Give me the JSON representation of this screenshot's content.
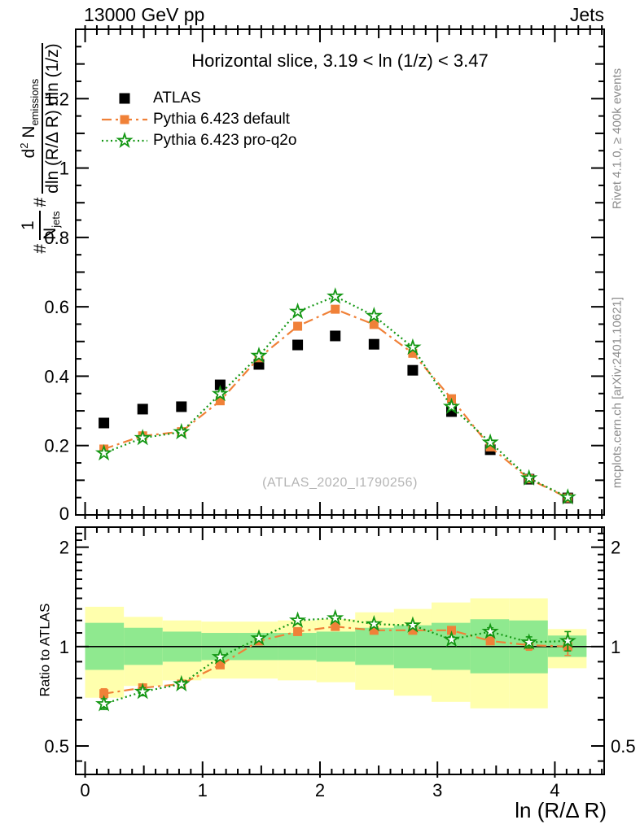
{
  "header": {
    "left": "13000 GeV pp",
    "right": "Jets"
  },
  "panel_title": "Horizontal slice, 3.19 < ln (1/z) < 3.47",
  "watermark": "(ATLAS_2020_I1790256)",
  "credits": {
    "top": "Rivet 4.1.0, ≥ 400k events",
    "bottom": "mcplots.cern.ch [arXiv:2401.10621]"
  },
  "axes": {
    "x_title": "ln (R/Δ R)",
    "ratio_title": "Ratio to ATLAS",
    "y_title": {
      "hash1": "#",
      "frac1_num": "1",
      "frac1_den_base": "N",
      "frac1_den_sub": "jets",
      "hash2": "#",
      "frac2_num_d": "d",
      "frac2_num_sup": "2",
      "frac2_num_N": " N",
      "frac2_num_sub": "emissions",
      "frac2_den": "dln (R/Δ R) dln (1/z)"
    }
  },
  "colors": {
    "atlas": "#000000",
    "pythia_default": "#f08138",
    "pythia_proq2o": "#129612",
    "band_yellow": "#ffffad",
    "band_green": "#8fe98f",
    "watermark": "#b4b4b4",
    "credits": "#8c8c8c",
    "frame": "#000000"
  },
  "chart_data": {
    "type": "line",
    "title": "Horizontal slice, 3.19 < ln (1/z) < 3.47",
    "xlabel": "ln (R/Δ R)",
    "ylabel": "(1/N_jets) d2N_emissions / dln(R/ΔR) dln(1/z)",
    "xlim": [
      -0.08,
      4.42
    ],
    "ylim": [
      0,
      1.4
    ],
    "x": [
      0.16,
      0.49,
      0.82,
      1.15,
      1.48,
      1.81,
      2.13,
      2.46,
      2.79,
      3.12,
      3.45,
      3.78,
      4.11
    ],
    "xticks": [
      0,
      1,
      2,
      3,
      4
    ],
    "xtick_labels": [
      "0",
      "1",
      "2",
      "3",
      "4"
    ],
    "ytick_labels": [
      "0",
      "0.2",
      "0.4",
      "0.6",
      "0.8",
      "1",
      "1.2"
    ],
    "series": [
      {
        "name": "ATLAS",
        "color": "#000000",
        "marker": "square-filled",
        "line": "none",
        "values": [
          0.265,
          0.305,
          0.312,
          0.375,
          0.434,
          0.49,
          0.516,
          0.492,
          0.417,
          0.298,
          0.188,
          0.103,
          0.049
        ]
      },
      {
        "name": "Pythia 6.423 default",
        "color": "#f08138",
        "marker": "square-filled",
        "line": "dash-dot",
        "values": [
          0.19,
          0.228,
          0.24,
          0.329,
          0.453,
          0.544,
          0.593,
          0.549,
          0.466,
          0.335,
          0.196,
          0.104,
          0.049
        ]
      },
      {
        "name": "Pythia 6.423 pro-q2o",
        "color": "#129612",
        "marker": "star-open",
        "line": "dotted",
        "values": [
          0.178,
          0.222,
          0.239,
          0.349,
          0.459,
          0.586,
          0.63,
          0.574,
          0.483,
          0.312,
          0.209,
          0.106,
          0.051
        ]
      }
    ],
    "ratio": {
      "scale": "log",
      "ylim": [
        0.41,
        2.3
      ],
      "yticks": [
        0.5,
        1,
        2
      ],
      "ytick_labels": [
        "0.5",
        "1",
        "2"
      ],
      "yticks_minor": [
        0.45,
        0.6,
        0.7,
        0.8,
        0.9,
        1.1,
        1.2,
        1.3,
        1.4,
        1.5,
        1.6,
        1.7,
        1.8,
        1.9,
        2.1,
        2.2
      ],
      "reference_line": 1,
      "series": [
        {
          "name": "Pythia 6.423 default",
          "values": [
            0.72,
            0.75,
            0.77,
            0.88,
            1.04,
            1.11,
            1.15,
            1.12,
            1.12,
            1.12,
            1.04,
            1.01,
            1.0
          ],
          "errors": [
            0.025,
            0.02,
            0.015,
            0.012,
            0.012,
            0.012,
            0.012,
            0.012,
            0.015,
            0.02,
            0.025,
            0.035,
            0.06
          ]
        },
        {
          "name": "Pythia 6.423 pro-q2o",
          "values": [
            0.67,
            0.73,
            0.77,
            0.93,
            1.06,
            1.2,
            1.22,
            1.17,
            1.16,
            1.05,
            1.11,
            1.03,
            1.04
          ],
          "errors": [
            0.025,
            0.02,
            0.015,
            0.012,
            0.012,
            0.015,
            0.015,
            0.012,
            0.015,
            0.02,
            0.03,
            0.04,
            0.07
          ]
        }
      ],
      "bands": {
        "bin_edges": [
          0,
          0.33,
          0.66,
          0.99,
          1.31,
          1.64,
          1.97,
          2.3,
          2.63,
          2.95,
          3.28,
          3.61,
          3.94,
          4.27
        ],
        "yellow_lo": [
          0.7,
          0.76,
          0.79,
          0.8,
          0.8,
          0.79,
          0.78,
          0.74,
          0.71,
          0.68,
          0.65,
          0.65,
          0.86
        ],
        "yellow_hi": [
          1.32,
          1.23,
          1.2,
          1.19,
          1.19,
          1.2,
          1.21,
          1.27,
          1.3,
          1.36,
          1.4,
          1.4,
          1.13
        ],
        "green_lo": [
          0.85,
          0.88,
          0.9,
          0.91,
          0.91,
          0.91,
          0.9,
          0.88,
          0.86,
          0.85,
          0.83,
          0.83,
          0.93
        ],
        "green_hi": [
          1.18,
          1.14,
          1.11,
          1.1,
          1.1,
          1.1,
          1.11,
          1.14,
          1.16,
          1.18,
          1.21,
          1.2,
          1.08
        ]
      }
    }
  }
}
